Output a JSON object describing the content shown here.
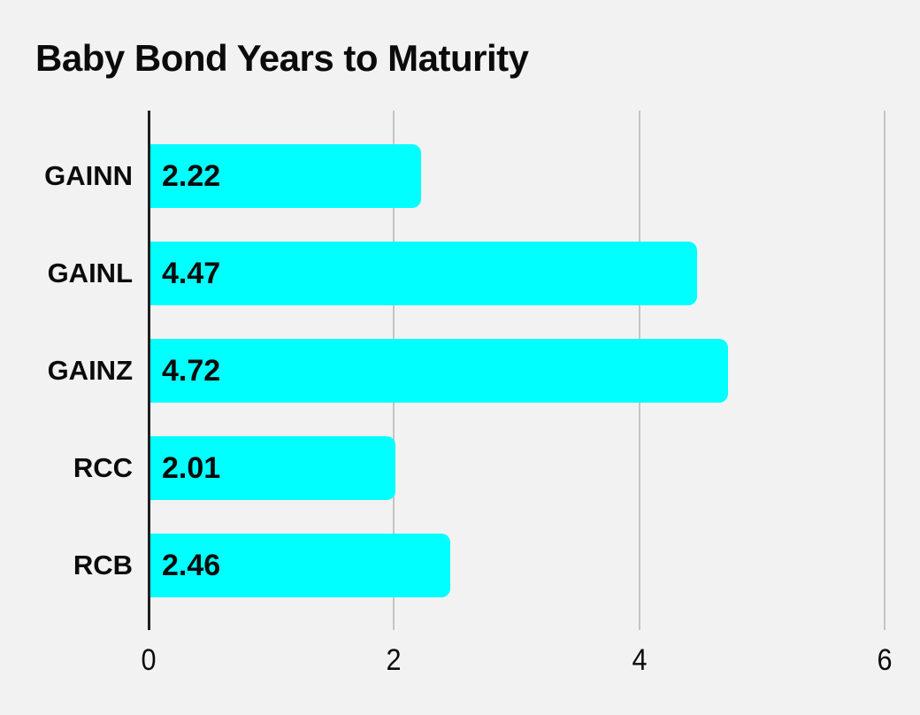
{
  "title": "Baby Bond Years to Maturity",
  "colors": {
    "background": "#F2F2F2",
    "bar": "#00FFFF",
    "axis_line": "#1F1F1F",
    "gridline": "#C4C4C4",
    "text": "#0B0B0B"
  },
  "chart_data": {
    "type": "bar",
    "orientation": "horizontal",
    "title": "Baby Bond Years to Maturity",
    "categories": [
      "GAINN",
      "GAINL",
      "GAINZ",
      "RCC",
      "RCB"
    ],
    "values": [
      2.22,
      4.47,
      4.72,
      2.01,
      2.46
    ],
    "value_labels": [
      "2.22",
      "4.47",
      "4.72",
      "2.01",
      "2.46"
    ],
    "xlabel": "",
    "ylabel": "",
    "xlim": [
      0,
      6
    ],
    "xticks": [
      0,
      2,
      4,
      6
    ],
    "xtick_labels": [
      "0",
      "2",
      "4",
      "6"
    ],
    "grid": true,
    "legend": false,
    "value_labels_position": "inside-left"
  }
}
